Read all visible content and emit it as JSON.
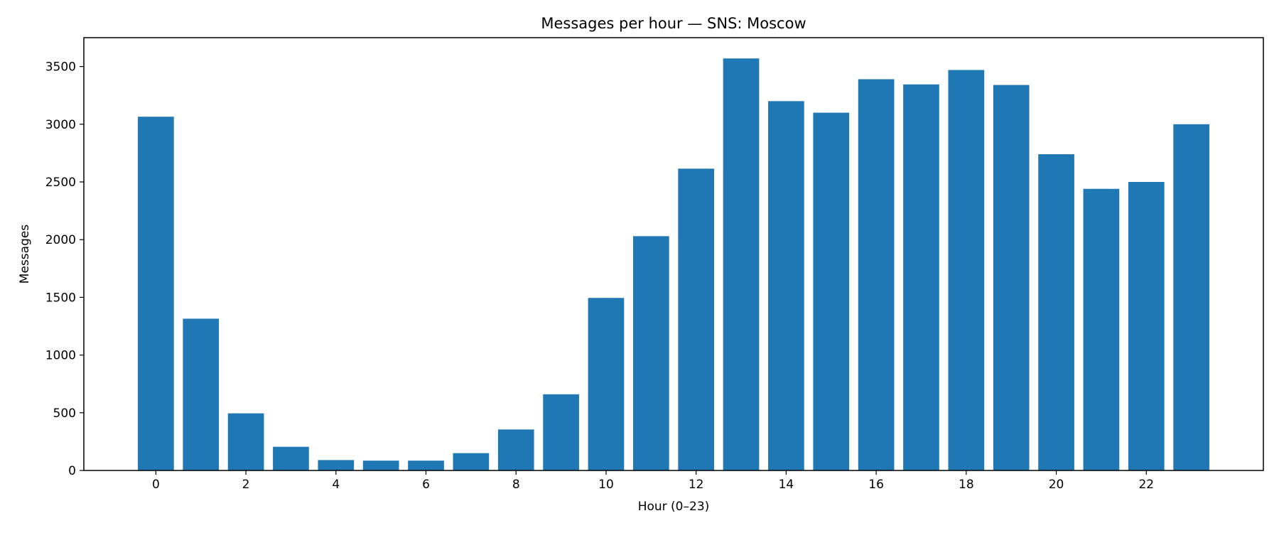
{
  "chart_data": {
    "type": "bar",
    "title": "Messages per hour — SNS: Moscow",
    "xlabel": "Hour (0–23)",
    "ylabel": "Messages",
    "categories": [
      0,
      1,
      2,
      3,
      4,
      5,
      6,
      7,
      8,
      9,
      10,
      11,
      12,
      13,
      14,
      15,
      16,
      17,
      18,
      19,
      20,
      21,
      22,
      23
    ],
    "values": [
      3065,
      1315,
      495,
      205,
      90,
      85,
      85,
      150,
      355,
      660,
      1495,
      2030,
      2615,
      3570,
      3200,
      3100,
      3390,
      3345,
      3470,
      3340,
      2740,
      2440,
      2500,
      3000
    ],
    "xlim": [
      -1.6,
      24.6
    ],
    "ylim": [
      0,
      3750
    ],
    "xticks": [
      0,
      2,
      4,
      6,
      8,
      10,
      12,
      14,
      16,
      18,
      20,
      22
    ],
    "yticks": [
      0,
      500,
      1000,
      1500,
      2000,
      2500,
      3000,
      3500
    ],
    "bar_color": "#1f77b4",
    "grid": false,
    "legend": "none"
  }
}
